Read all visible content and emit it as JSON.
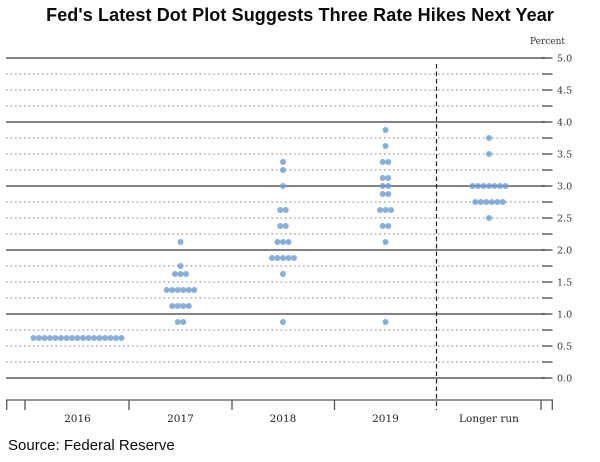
{
  "header": {
    "title": "Fed's Latest Dot Plot Suggests Three Rate Hikes Next Year"
  },
  "footer": {
    "source": "Source: Federal Reserve"
  },
  "chart_data": {
    "type": "scatter",
    "title": "Fed's Latest Dot Plot Suggests Three Rate Hikes Next Year",
    "ylabel": "Percent",
    "xlabel": "",
    "ylim": [
      0.0,
      5.0
    ],
    "y_tick_step": 0.25,
    "y_label_step": 0.5,
    "grid": {
      "solid_lines_at": "integer values",
      "dotted_lines_at": "quarter values"
    },
    "legend_position": "none",
    "x_categories": [
      "2016",
      "2017",
      "2018",
      "2019",
      "Longer run"
    ],
    "separator_before_category": "Longer run",
    "dot_color": "#6f9ed0",
    "notes": "Each dot is one FOMC participant's federal funds rate projection",
    "series": [
      {
        "category": "2016",
        "dots": [
          {
            "rate": 0.625,
            "count": 17
          }
        ]
      },
      {
        "category": "2017",
        "dots": [
          {
            "rate": 2.125,
            "count": 1
          },
          {
            "rate": 1.75,
            "count": 1
          },
          {
            "rate": 1.625,
            "count": 3
          },
          {
            "rate": 1.375,
            "count": 6
          },
          {
            "rate": 1.125,
            "count": 4
          },
          {
            "rate": 0.875,
            "count": 2
          }
        ]
      },
      {
        "category": "2018",
        "dots": [
          {
            "rate": 3.375,
            "count": 1
          },
          {
            "rate": 3.25,
            "count": 1
          },
          {
            "rate": 3.0,
            "count": 1
          },
          {
            "rate": 2.625,
            "count": 2
          },
          {
            "rate": 2.375,
            "count": 2
          },
          {
            "rate": 2.125,
            "count": 3
          },
          {
            "rate": 1.875,
            "count": 5
          },
          {
            "rate": 1.625,
            "count": 1
          },
          {
            "rate": 0.875,
            "count": 1
          }
        ]
      },
      {
        "category": "2019",
        "dots": [
          {
            "rate": 3.875,
            "count": 1
          },
          {
            "rate": 3.625,
            "count": 1
          },
          {
            "rate": 3.375,
            "count": 2
          },
          {
            "rate": 3.125,
            "count": 2
          },
          {
            "rate": 3.0,
            "count": 2
          },
          {
            "rate": 2.875,
            "count": 2
          },
          {
            "rate": 2.625,
            "count": 3
          },
          {
            "rate": 2.375,
            "count": 2
          },
          {
            "rate": 2.125,
            "count": 1
          },
          {
            "rate": 0.875,
            "count": 1
          }
        ]
      },
      {
        "category": "Longer run",
        "dots": [
          {
            "rate": 3.75,
            "count": 1
          },
          {
            "rate": 3.5,
            "count": 1
          },
          {
            "rate": 3.0,
            "count": 7
          },
          {
            "rate": 2.75,
            "count": 6
          },
          {
            "rate": 2.5,
            "count": 1
          }
        ]
      }
    ]
  }
}
